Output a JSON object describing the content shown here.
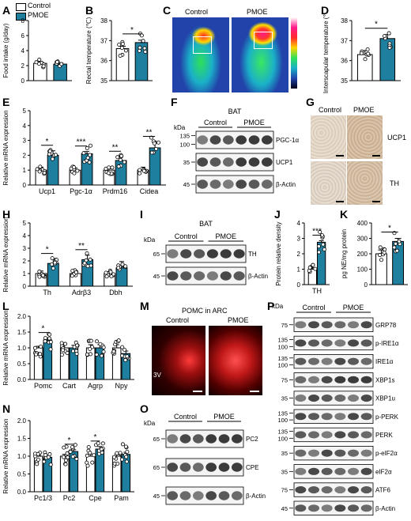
{
  "colors": {
    "control": "#ffffff",
    "pmoe": "#1f7f9e",
    "stroke": "#000000",
    "dot": "#ffffff"
  },
  "legend": {
    "control": "Control",
    "pmoe": "PMOE"
  },
  "panel_letters": {
    "A": "A",
    "B": "B",
    "C": "C",
    "D": "D",
    "E": "E",
    "F": "F",
    "G": "G",
    "H": "H",
    "I": "I",
    "J": "J",
    "K": "K",
    "L": "L",
    "M": "M",
    "N": "N",
    "O": "O",
    "P": "P"
  },
  "chart_data": [
    {
      "id": "A",
      "type": "bar",
      "categories": [
        "Control",
        "PMOE"
      ],
      "values": [
        2.3,
        2.2
      ],
      "errors": [
        0.2,
        0.15
      ],
      "ylabel": "Food intake (g/day)",
      "ylim": [
        0,
        8
      ],
      "yticks": [
        0,
        2,
        4,
        6,
        8
      ],
      "sig": ""
    },
    {
      "id": "B",
      "type": "bar",
      "categories": [
        "Control",
        "PMOE"
      ],
      "values": [
        36.6,
        36.9
      ],
      "errors": [
        0.12,
        0.12
      ],
      "ylabel": "Rectal temperature (℃)",
      "ylim": [
        35,
        38
      ],
      "yticks": [
        35,
        36,
        37,
        38
      ],
      "sig": "*"
    },
    {
      "id": "D",
      "type": "bar",
      "categories": [
        "Control",
        "PMOE"
      ],
      "values": [
        36.3,
        37.1
      ],
      "errors": [
        0.2,
        0.2
      ],
      "ylabel": "Interscapular temperature (℃)",
      "ylim": [
        35,
        38
      ],
      "yticks": [
        35,
        36,
        37,
        38
      ],
      "sig": "*"
    },
    {
      "id": "E",
      "type": "bar",
      "categories": [
        "Ucp1",
        "Pgc-1α",
        "Prdm16",
        "Cidea"
      ],
      "series": [
        {
          "name": "Control",
          "values": [
            1.0,
            1.0,
            1.0,
            1.0
          ]
        },
        {
          "name": "PMOE",
          "values": [
            2.0,
            2.1,
            1.65,
            2.5
          ]
        }
      ],
      "errors": [
        [
          0.2,
          0.15,
          0.1,
          0.2
        ],
        [
          0.3,
          0.15,
          0.25,
          0.4
        ]
      ],
      "ylabel": "Relative mRNA expression",
      "ylim": [
        0,
        5
      ],
      "yticks": [
        0,
        1,
        2,
        3,
        4,
        5
      ],
      "sig": [
        "*",
        "***",
        "**",
        "**"
      ]
    },
    {
      "id": "H",
      "type": "bar",
      "categories": [
        "Th",
        "Adrβ3",
        "Dbh"
      ],
      "series": [
        {
          "name": "Control",
          "values": [
            1.0,
            1.0,
            1.0
          ]
        },
        {
          "name": "PMOE",
          "values": [
            1.8,
            2.1,
            1.45
          ]
        }
      ],
      "errors": [
        [
          0.2,
          0.15,
          0.15
        ],
        [
          0.35,
          0.35,
          0.5
        ]
      ],
      "ylabel": "Relative mRNA expression",
      "ylim": [
        0,
        5
      ],
      "yticks": [
        0,
        1,
        2,
        3,
        4,
        5
      ],
      "sig": [
        "*",
        "**",
        ""
      ]
    },
    {
      "id": "J",
      "type": "bar",
      "categories": [
        "TH"
      ],
      "series": [
        {
          "name": "Control",
          "values": [
            1.0
          ]
        },
        {
          "name": "PMOE",
          "values": [
            2.75
          ]
        }
      ],
      "errors": [
        [
          0.1
        ],
        [
          0.1
        ]
      ],
      "ylabel": "Protein relative density",
      "ylim": [
        0,
        4
      ],
      "yticks": [
        0,
        1,
        2,
        3,
        4
      ],
      "sig": [
        "***"
      ]
    },
    {
      "id": "K",
      "type": "bar",
      "categories": [
        "Control",
        "PMOE"
      ],
      "values": [
        200,
        280
      ],
      "errors": [
        25,
        20
      ],
      "ylabel": "pg NE/mg protein",
      "ylim": [
        0,
        400
      ],
      "yticks": [
        0,
        100,
        200,
        300,
        400
      ],
      "sig": "*"
    },
    {
      "id": "L",
      "type": "bar",
      "categories": [
        "Pomc",
        "Cart",
        "Agrp",
        "Npy"
      ],
      "series": [
        {
          "name": "Control",
          "values": [
            1.0,
            1.0,
            1.0,
            1.0
          ]
        },
        {
          "name": "PMOE",
          "values": [
            1.25,
            1.0,
            1.0,
            0.82
          ]
        }
      ],
      "errors": [
        [
          0.05,
          0.1,
          0.1,
          0.1
        ],
        [
          0.06,
          0.08,
          0.1,
          0.08
        ]
      ],
      "ylabel": "Relative mRNA expression",
      "ylim": [
        0,
        2
      ],
      "yticks": [
        0.0,
        0.5,
        1.0,
        1.5,
        2.0
      ],
      "sig": [
        "*",
        "",
        "",
        ""
      ]
    },
    {
      "id": "N",
      "type": "bar",
      "categories": [
        "Pc1/3",
        "Pc2",
        "Cpe",
        "Pam"
      ],
      "series": [
        {
          "name": "Control",
          "values": [
            1.0,
            1.0,
            1.0,
            1.0
          ]
        },
        {
          "name": "PMOE",
          "values": [
            0.97,
            1.13,
            1.2,
            1.05
          ]
        }
      ],
      "errors": [
        [
          0.02,
          0.05,
          0.06,
          0.05
        ],
        [
          0.03,
          0.05,
          0.07,
          0.06
        ]
      ],
      "ylabel": "Relative mRNA expression",
      "ylim": [
        0,
        2
      ],
      "yticks": [
        0.0,
        0.5,
        1.0,
        1.5,
        2.0
      ],
      "sig": [
        "",
        "*",
        "*",
        ""
      ]
    }
  ],
  "thermal": {
    "control": "Control",
    "pmoe": "PMOE"
  },
  "blot_F": {
    "title": "BAT",
    "kda": "kDa",
    "groups": [
      "Control",
      "PMOE"
    ],
    "bands": [
      {
        "label": "PGC-1α",
        "markers": [
          "135",
          "100"
        ]
      },
      {
        "label": "UCP1",
        "markers": [
          "35"
        ]
      },
      {
        "label": "β-Actin",
        "markers": [
          "45"
        ]
      }
    ]
  },
  "histo_G": {
    "groups": [
      "Control",
      "PMOE"
    ],
    "rows": [
      "UCP1",
      "TH"
    ]
  },
  "blot_I": {
    "title": "BAT",
    "kda": "kDa",
    "groups": [
      "Control",
      "PMOE"
    ],
    "bands": [
      {
        "label": "TH",
        "markers": [
          "65"
        ]
      },
      {
        "label": "β-Actin",
        "markers": [
          "45"
        ]
      }
    ]
  },
  "panel_M": {
    "title": "POMC in ARC",
    "groups": [
      "Control",
      "PMOE"
    ],
    "mark": "3V"
  },
  "blot_O": {
    "kda": "kDa",
    "groups": [
      "Control",
      "PMOE"
    ],
    "bands": [
      {
        "label": "PC2",
        "markers": [
          "65"
        ]
      },
      {
        "label": "CPE",
        "markers": [
          "65"
        ]
      },
      {
        "label": "β-Actin",
        "markers": [
          "45"
        ]
      }
    ]
  },
  "blot_P": {
    "kda": "kDa",
    "groups": [
      "Control",
      "PMOE"
    ],
    "bands": [
      {
        "label": "GRP78",
        "markers": [
          "75"
        ]
      },
      {
        "label": "p-IRE1α",
        "markers": [
          "135",
          "100"
        ]
      },
      {
        "label": "IRE1α",
        "markers": [
          "135",
          "100"
        ]
      },
      {
        "label": "XBP1s",
        "markers": [
          "75"
        ]
      },
      {
        "label": "XBP1u",
        "markers": [
          "35"
        ]
      },
      {
        "label": "p-PERK",
        "markers": [
          "135",
          "100"
        ]
      },
      {
        "label": "PERK",
        "markers": [
          "135",
          "100"
        ]
      },
      {
        "label": "p-eIF2α",
        "markers": [
          "35"
        ]
      },
      {
        "label": "eIF2α",
        "markers": [
          "35"
        ]
      },
      {
        "label": "ATF6",
        "markers": [
          "75"
        ]
      },
      {
        "label": "β-Actin",
        "markers": [
          "45"
        ]
      }
    ]
  }
}
